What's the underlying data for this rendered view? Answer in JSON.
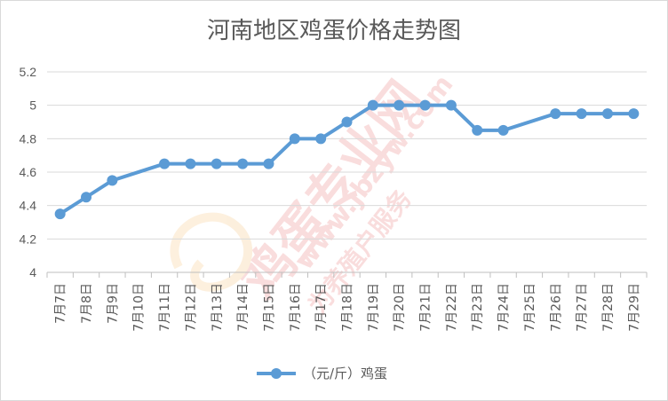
{
  "chart_data": {
    "type": "line",
    "title": "河南地区鸡蛋价格走势图",
    "categories": [
      "7月7日",
      "7月8日",
      "7月9日",
      "7月10日",
      "7月11日",
      "7月12日",
      "7月13日",
      "7月14日",
      "7月15日",
      "7月16日",
      "7月17日",
      "7月18日",
      "7月19日",
      "7月20日",
      "7月21日",
      "7月22日",
      "7月23日",
      "7月24日",
      "7月25日",
      "7月26日",
      "7月27日",
      "7月28日",
      "7月29日"
    ],
    "series": [
      {
        "name": "（元/斤）鸡蛋",
        "color": "#5b9bd5",
        "values": [
          4.35,
          4.45,
          4.55,
          null,
          4.65,
          4.65,
          4.65,
          4.65,
          4.65,
          4.8,
          4.8,
          4.9,
          5.0,
          5.0,
          5.0,
          5.0,
          4.85,
          4.85,
          null,
          4.95,
          4.95,
          4.95,
          4.95
        ]
      }
    ],
    "xlabel": "",
    "ylabel": "",
    "ylim": [
      4,
      5.2
    ],
    "yticks": [
      "4",
      "4.2",
      "4.4",
      "4.6",
      "4.8",
      "5",
      "5.2"
    ],
    "grid": true,
    "legend_position": "bottom"
  },
  "watermark": {
    "brand": "鸡蛋专业网",
    "url": "www.jbzyw.com",
    "slogan": "为养殖户服务"
  }
}
